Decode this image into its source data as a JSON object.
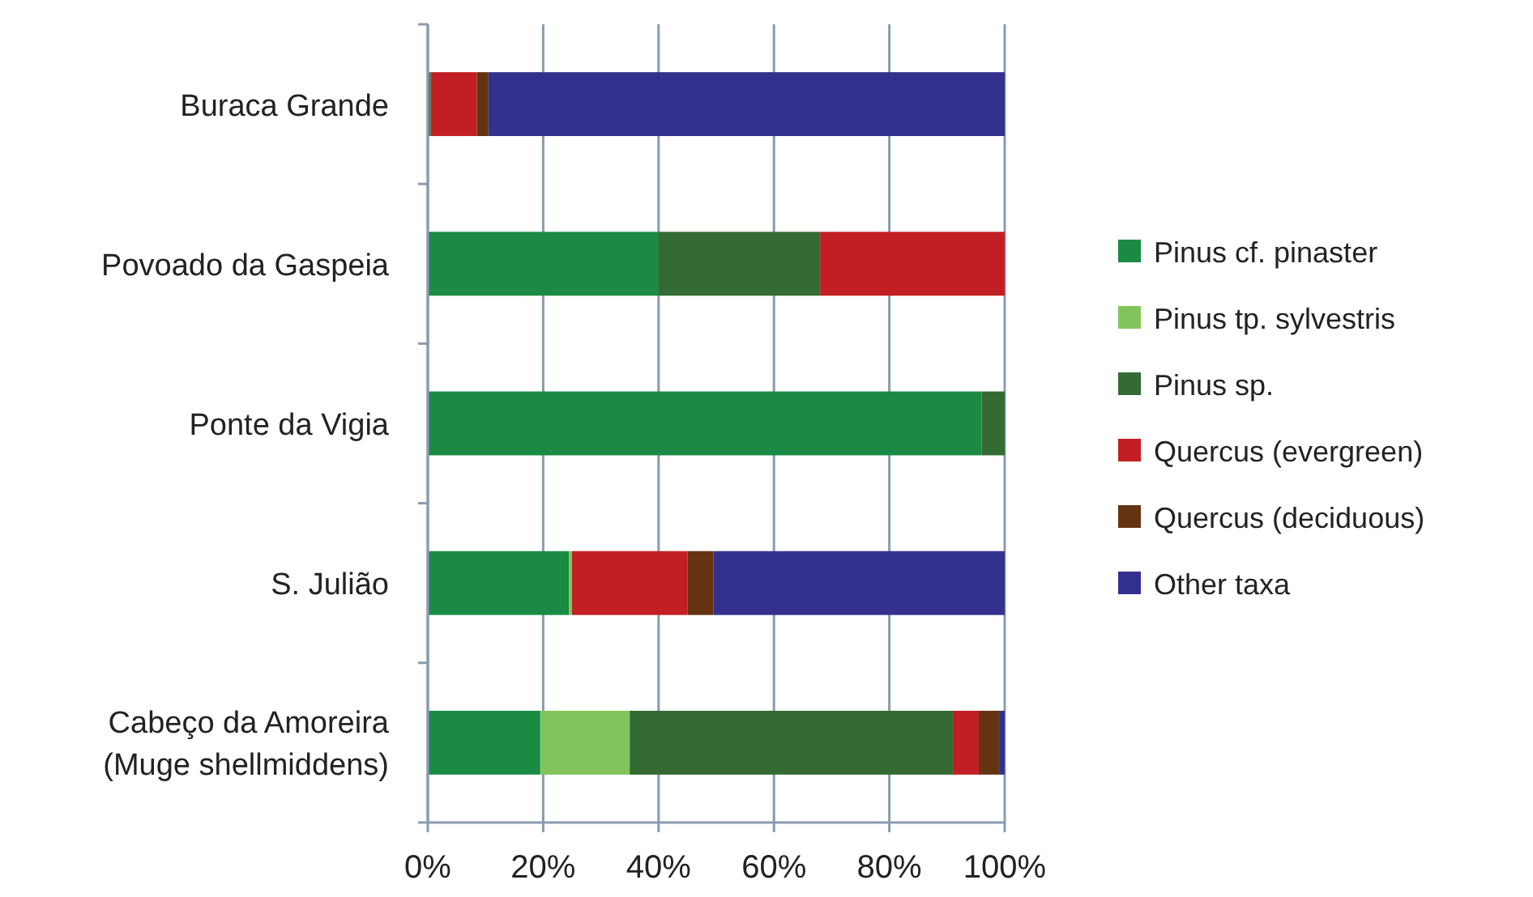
{
  "chart_data": {
    "type": "bar",
    "orientation": "horizontal",
    "stacked": true,
    "categories": [
      "Buraca Grande",
      "Povoado da Gaspeia",
      "Ponte da Vigia",
      "S. Julião",
      "Cabeço da Amoreira\n(Muge shellmiddens)"
    ],
    "series": [
      {
        "name": "Pinus cf. pinaster",
        "color": "#1a8a45",
        "values": [
          0.5,
          40,
          96,
          24.5,
          19.5
        ]
      },
      {
        "name": "Pinus tp. sylvestris",
        "color": "#82c45c",
        "values": [
          0,
          0,
          0,
          0.5,
          15.5
        ]
      },
      {
        "name": "Pinus sp.",
        "color": "#336b32",
        "values": [
          0,
          28,
          4,
          0,
          56
        ]
      },
      {
        "name": "Quercus (evergreen)",
        "color": "#c21f24",
        "values": [
          8,
          32,
          0,
          20,
          4.5
        ]
      },
      {
        "name": "Quercus (deciduous)",
        "color": "#633312",
        "values": [
          2,
          0,
          0,
          4.5,
          3.5
        ]
      },
      {
        "name": "Other taxa",
        "color": "#34308f",
        "values": [
          89.5,
          0,
          0,
          50.5,
          1
        ]
      }
    ],
    "xlim": [
      0,
      100
    ],
    "xticks": [
      {
        "value": 0,
        "label": "0%"
      },
      {
        "value": 20,
        "label": "20%"
      },
      {
        "value": 40,
        "label": "40%"
      },
      {
        "value": 60,
        "label": "60%"
      },
      {
        "value": 80,
        "label": "80%"
      },
      {
        "value": 100,
        "label": "100%"
      }
    ],
    "grid": "x",
    "legend": "right"
  }
}
